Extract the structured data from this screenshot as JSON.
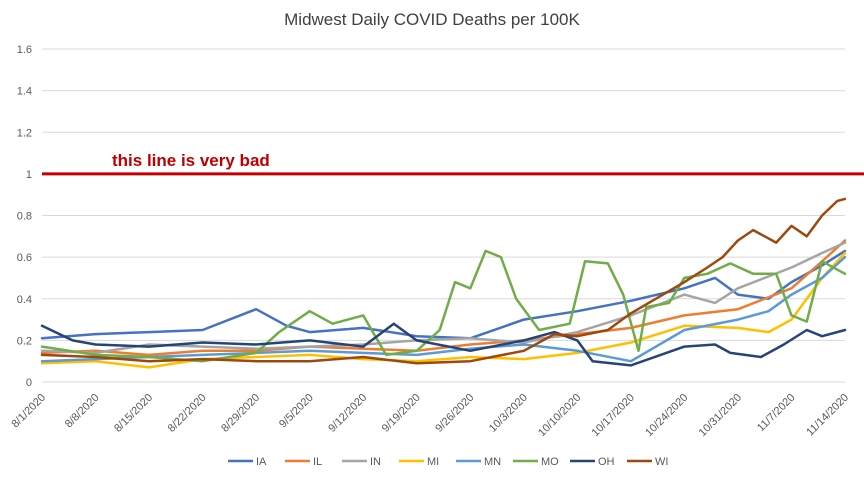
{
  "chart_data": {
    "type": "line",
    "title": "Midwest Daily COVID Deaths per 100K",
    "xlabel": "",
    "ylabel": "",
    "ylim": [
      0,
      1.6
    ],
    "yticks": [
      "0",
      "0.2",
      "0.4",
      "0.6",
      "0.8",
      "1",
      "1.2",
      "1.4",
      "1.6"
    ],
    "x_start": "8/1/2020",
    "x_end": "11/14/2020",
    "xticks": [
      "8/1/2020",
      "8/8/2020",
      "8/15/2020",
      "8/22/2020",
      "8/29/2020",
      "9/5/2020",
      "9/12/2020",
      "9/19/2020",
      "9/26/2020",
      "10/3/2020",
      "10/10/2020",
      "10/17/2020",
      "10/24/2020",
      "10/31/2020",
      "11/7/2020",
      "11/14/2020"
    ],
    "grid": true,
    "legend_position": "bottom",
    "reference_line": {
      "y": 1,
      "label": "this line is very bad",
      "color": "#C00000"
    },
    "series": [
      {
        "name": "IA",
        "color": "#4472C4",
        "points": [
          [
            0,
            0.21
          ],
          [
            7,
            0.23
          ],
          [
            14,
            0.24
          ],
          [
            21,
            0.25
          ],
          [
            28,
            0.35
          ],
          [
            32,
            0.27
          ],
          [
            35,
            0.24
          ],
          [
            42,
            0.26
          ],
          [
            49,
            0.22
          ],
          [
            56,
            0.21
          ],
          [
            63,
            0.3
          ],
          [
            70,
            0.34
          ],
          [
            77,
            0.39
          ],
          [
            84,
            0.45
          ],
          [
            88,
            0.5
          ],
          [
            91,
            0.42
          ],
          [
            95,
            0.4
          ],
          [
            98,
            0.48
          ],
          [
            102,
            0.56
          ],
          [
            105,
            0.63
          ]
        ]
      },
      {
        "name": "IL",
        "color": "#ED7D31",
        "points": [
          [
            0,
            0.14
          ],
          [
            7,
            0.15
          ],
          [
            14,
            0.13
          ],
          [
            21,
            0.15
          ],
          [
            28,
            0.15
          ],
          [
            35,
            0.17
          ],
          [
            42,
            0.16
          ],
          [
            49,
            0.15
          ],
          [
            56,
            0.18
          ],
          [
            63,
            0.2
          ],
          [
            70,
            0.23
          ],
          [
            77,
            0.26
          ],
          [
            84,
            0.32
          ],
          [
            91,
            0.35
          ],
          [
            98,
            0.45
          ],
          [
            102,
            0.58
          ],
          [
            105,
            0.68
          ]
        ]
      },
      {
        "name": "IN",
        "color": "#A5A5A5",
        "points": [
          [
            0,
            0.15
          ],
          [
            7,
            0.14
          ],
          [
            14,
            0.18
          ],
          [
            21,
            0.17
          ],
          [
            28,
            0.16
          ],
          [
            35,
            0.17
          ],
          [
            42,
            0.18
          ],
          [
            49,
            0.2
          ],
          [
            56,
            0.21
          ],
          [
            63,
            0.19
          ],
          [
            70,
            0.24
          ],
          [
            77,
            0.32
          ],
          [
            84,
            0.42
          ],
          [
            88,
            0.38
          ],
          [
            91,
            0.45
          ],
          [
            98,
            0.55
          ],
          [
            102,
            0.62
          ],
          [
            105,
            0.67
          ]
        ]
      },
      {
        "name": "MI",
        "color": "#FFC000",
        "points": [
          [
            0,
            0.09
          ],
          [
            7,
            0.1
          ],
          [
            14,
            0.07
          ],
          [
            21,
            0.11
          ],
          [
            28,
            0.12
          ],
          [
            35,
            0.13
          ],
          [
            42,
            0.11
          ],
          [
            49,
            0.1
          ],
          [
            56,
            0.12
          ],
          [
            63,
            0.11
          ],
          [
            70,
            0.14
          ],
          [
            77,
            0.19
          ],
          [
            84,
            0.27
          ],
          [
            91,
            0.26
          ],
          [
            95,
            0.24
          ],
          [
            98,
            0.3
          ],
          [
            102,
            0.5
          ],
          [
            105,
            0.62
          ]
        ]
      },
      {
        "name": "MN",
        "color": "#5B9BD5",
        "points": [
          [
            0,
            0.1
          ],
          [
            7,
            0.11
          ],
          [
            14,
            0.12
          ],
          [
            21,
            0.13
          ],
          [
            28,
            0.14
          ],
          [
            35,
            0.15
          ],
          [
            42,
            0.14
          ],
          [
            49,
            0.13
          ],
          [
            56,
            0.16
          ],
          [
            63,
            0.18
          ],
          [
            70,
            0.15
          ],
          [
            77,
            0.1
          ],
          [
            84,
            0.25
          ],
          [
            91,
            0.3
          ],
          [
            95,
            0.34
          ],
          [
            98,
            0.42
          ],
          [
            102,
            0.5
          ],
          [
            105,
            0.6
          ]
        ]
      },
      {
        "name": "MO",
        "color": "#70AD47",
        "points": [
          [
            0,
            0.17
          ],
          [
            7,
            0.13
          ],
          [
            14,
            0.12
          ],
          [
            21,
            0.1
          ],
          [
            28,
            0.14
          ],
          [
            31,
            0.24
          ],
          [
            35,
            0.34
          ],
          [
            38,
            0.28
          ],
          [
            42,
            0.32
          ],
          [
            45,
            0.13
          ],
          [
            49,
            0.15
          ],
          [
            52,
            0.25
          ],
          [
            54,
            0.48
          ],
          [
            56,
            0.45
          ],
          [
            58,
            0.63
          ],
          [
            60,
            0.6
          ],
          [
            62,
            0.4
          ],
          [
            65,
            0.25
          ],
          [
            69,
            0.28
          ],
          [
            71,
            0.58
          ],
          [
            74,
            0.57
          ],
          [
            76,
            0.42
          ],
          [
            78,
            0.15
          ],
          [
            79,
            0.36
          ],
          [
            82,
            0.38
          ],
          [
            84,
            0.5
          ],
          [
            87,
            0.52
          ],
          [
            90,
            0.57
          ],
          [
            93,
            0.52
          ],
          [
            96,
            0.52
          ],
          [
            98,
            0.32
          ],
          [
            100,
            0.29
          ],
          [
            102,
            0.58
          ],
          [
            105,
            0.52
          ]
        ]
      },
      {
        "name": "OH",
        "color": "#264478",
        "points": [
          [
            0,
            0.27
          ],
          [
            4,
            0.2
          ],
          [
            7,
            0.18
          ],
          [
            14,
            0.17
          ],
          [
            21,
            0.19
          ],
          [
            28,
            0.18
          ],
          [
            35,
            0.2
          ],
          [
            42,
            0.17
          ],
          [
            46,
            0.28
          ],
          [
            49,
            0.2
          ],
          [
            56,
            0.15
          ],
          [
            63,
            0.2
          ],
          [
            67,
            0.24
          ],
          [
            70,
            0.2
          ],
          [
            72,
            0.1
          ],
          [
            77,
            0.08
          ],
          [
            84,
            0.17
          ],
          [
            88,
            0.18
          ],
          [
            90,
            0.14
          ],
          [
            94,
            0.12
          ],
          [
            97,
            0.18
          ],
          [
            100,
            0.25
          ],
          [
            102,
            0.22
          ],
          [
            105,
            0.25
          ]
        ]
      },
      {
        "name": "WI",
        "color": "#9E480E",
        "points": [
          [
            0,
            0.13
          ],
          [
            7,
            0.12
          ],
          [
            14,
            0.1
          ],
          [
            21,
            0.11
          ],
          [
            28,
            0.1
          ],
          [
            35,
            0.1
          ],
          [
            42,
            0.12
          ],
          [
            49,
            0.09
          ],
          [
            56,
            0.1
          ],
          [
            63,
            0.15
          ],
          [
            67,
            0.23
          ],
          [
            70,
            0.22
          ],
          [
            74,
            0.25
          ],
          [
            77,
            0.33
          ],
          [
            84,
            0.48
          ],
          [
            87,
            0.55
          ],
          [
            89,
            0.6
          ],
          [
            91,
            0.68
          ],
          [
            93,
            0.73
          ],
          [
            96,
            0.67
          ],
          [
            98,
            0.75
          ],
          [
            100,
            0.7
          ],
          [
            102,
            0.8
          ],
          [
            104,
            0.87
          ],
          [
            105,
            0.88
          ]
        ]
      }
    ]
  }
}
